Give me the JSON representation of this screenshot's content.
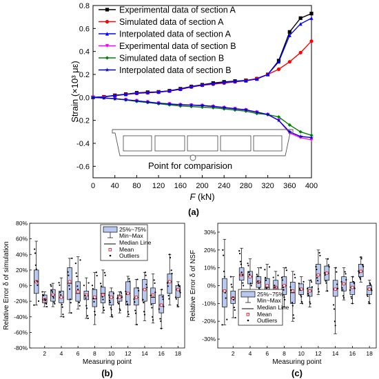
{
  "chart_data": [
    {
      "type": "line",
      "panel_label": "(a)",
      "xlabel_var": "F",
      "xlabel_unit": " (kN)",
      "ylabel": "Strain (×10³ με)",
      "xlim": [
        0,
        400
      ],
      "ylim": [
        -0.7,
        0.8
      ],
      "x_ticks": [
        0,
        40,
        80,
        120,
        160,
        200,
        240,
        280,
        320,
        360,
        400
      ],
      "y_ticks": [
        -0.6,
        -0.4,
        -0.2,
        0.0,
        0.2,
        0.4,
        0.6,
        0.8
      ],
      "legend_position": "top-left",
      "grid": false,
      "x": [
        0,
        20,
        40,
        60,
        80,
        100,
        120,
        140,
        160,
        180,
        200,
        220,
        240,
        260,
        280,
        300,
        320,
        340,
        360,
        380,
        400
      ],
      "series": [
        {
          "name": "Experimental data of section A",
          "color": "#000000",
          "marker": "square",
          "values": [
            0,
            0.005,
            0.018,
            0.028,
            0.04,
            0.045,
            0.048,
            0.058,
            0.075,
            0.095,
            0.11,
            0.125,
            0.135,
            0.142,
            0.148,
            0.162,
            0.2,
            0.32,
            0.57,
            0.69,
            0.73
          ]
        },
        {
          "name": "Simulated data of section A",
          "color": "#ff0000",
          "marker": "circle",
          "values": [
            0,
            0.005,
            0.015,
            0.025,
            0.035,
            0.04,
            0.045,
            0.055,
            0.07,
            0.09,
            0.105,
            0.115,
            0.125,
            0.135,
            0.145,
            0.165,
            0.2,
            0.245,
            0.31,
            0.39,
            0.49
          ]
        },
        {
          "name": "Interpolated data of section A",
          "color": "#0000ff",
          "marker": "triangle",
          "values": [
            0,
            0.005,
            0.017,
            0.027,
            0.038,
            0.043,
            0.047,
            0.057,
            0.072,
            0.093,
            0.108,
            0.12,
            0.13,
            0.14,
            0.145,
            0.16,
            0.2,
            0.31,
            0.54,
            0.64,
            0.69
          ]
        },
        {
          "name": "Experimental data of section B",
          "color": "#ff00ff",
          "marker": "triangle-down",
          "values": [
            0,
            -0.005,
            -0.012,
            -0.02,
            -0.03,
            -0.04,
            -0.05,
            -0.058,
            -0.065,
            -0.068,
            -0.072,
            -0.08,
            -0.09,
            -0.1,
            -0.11,
            -0.13,
            -0.15,
            -0.2,
            -0.31,
            -0.35,
            -0.37
          ]
        },
        {
          "name": "Simulated data of section B",
          "color": "#008000",
          "marker": "diamond",
          "values": [
            0,
            -0.005,
            -0.012,
            -0.022,
            -0.035,
            -0.045,
            -0.055,
            -0.065,
            -0.075,
            -0.08,
            -0.085,
            -0.09,
            -0.1,
            -0.11,
            -0.12,
            -0.14,
            -0.15,
            -0.17,
            -0.24,
            -0.3,
            -0.33
          ]
        },
        {
          "name": "Interpolated data of section B",
          "color": "#0000cc",
          "marker": "star",
          "values": [
            0,
            -0.005,
            -0.012,
            -0.02,
            -0.03,
            -0.04,
            -0.05,
            -0.057,
            -0.063,
            -0.067,
            -0.07,
            -0.078,
            -0.088,
            -0.098,
            -0.108,
            -0.128,
            -0.148,
            -0.2,
            -0.3,
            -0.34,
            -0.35
          ]
        }
      ],
      "annotation": "Point for comparision"
    },
    {
      "type": "box",
      "panel_label": "(b)",
      "ylabel": "Relative Error δ of simulation",
      "xlabel": "Measuring point",
      "ylim": [
        -80,
        80
      ],
      "y_ticks": [
        -80,
        -60,
        -40,
        -20,
        0,
        20,
        40,
        60,
        80
      ],
      "y_tick_suffix": "%",
      "x_ticks": [
        2,
        4,
        6,
        8,
        10,
        12,
        14,
        16,
        18
      ],
      "legend_position": "top-center",
      "legend": {
        "box": "25%~75%",
        "whisker": "Min~Max",
        "median": "Median Line",
        "mean": "Mean",
        "outliers": "Outliers"
      },
      "box_color": "#b8c8f0",
      "boxes": [
        {
          "x": 1,
          "q1": -10,
          "q3": 20,
          "median": 5,
          "mean": 5,
          "min": -25,
          "max": 57
        },
        {
          "x": 2,
          "q1": -22,
          "q3": -12,
          "median": -18,
          "mean": -18,
          "min": -27,
          "max": -8
        },
        {
          "x": 3,
          "q1": -20,
          "q3": -5,
          "median": -12,
          "mean": -12,
          "min": -27,
          "max": 3
        },
        {
          "x": 4,
          "q1": -22,
          "q3": -7,
          "median": -15,
          "mean": -15,
          "min": -40,
          "max": 10
        },
        {
          "x": 5,
          "q1": -18,
          "q3": 23,
          "median": 3,
          "mean": 5,
          "min": -35,
          "max": 35
        },
        {
          "x": 6,
          "q1": -20,
          "q3": 5,
          "median": -10,
          "mean": -8,
          "min": -30,
          "max": 37
        },
        {
          "x": 7,
          "q1": -18,
          "q3": -7,
          "median": -13,
          "mean": -12,
          "min": -42,
          "max": 10
        },
        {
          "x": 8,
          "q1": -27,
          "q3": -5,
          "median": -17,
          "mean": -15,
          "min": -50,
          "max": 17
        },
        {
          "x": 9,
          "q1": -22,
          "q3": -2,
          "median": -10,
          "mean": -12,
          "min": -35,
          "max": 20
        },
        {
          "x": 10,
          "q1": -25,
          "q3": -8,
          "median": -15,
          "mean": -15,
          "min": -40,
          "max": -3
        },
        {
          "x": 11,
          "q1": -20,
          "q3": -12,
          "median": -15,
          "mean": -15,
          "min": -35,
          "max": -8
        },
        {
          "x": 12,
          "q1": -25,
          "q3": 5,
          "median": -10,
          "mean": -10,
          "min": -40,
          "max": 12
        },
        {
          "x": 13,
          "q1": -25,
          "q3": -3,
          "median": -15,
          "mean": -15,
          "min": -50,
          "max": 8
        },
        {
          "x": 14,
          "q1": -20,
          "q3": 8,
          "median": -5,
          "mean": -5,
          "min": -45,
          "max": 17
        },
        {
          "x": 15,
          "q1": -23,
          "q3": -3,
          "median": -15,
          "mean": -12,
          "min": -48,
          "max": 15
        },
        {
          "x": 16,
          "q1": -35,
          "q3": -12,
          "median": -25,
          "mean": -25,
          "min": -55,
          "max": -5
        },
        {
          "x": 17,
          "q1": -10,
          "q3": 15,
          "median": 5,
          "mean": 5,
          "min": -25,
          "max": 40
        },
        {
          "x": 18,
          "q1": -15,
          "q3": 0,
          "median": -5,
          "mean": -5,
          "min": -27,
          "max": 5
        }
      ]
    },
    {
      "type": "box",
      "panel_label": "(c)",
      "ylabel": "Relative Error δ of NSF",
      "xlabel": "Measuring point",
      "ylim": [
        -35,
        35
      ],
      "y_ticks": [
        -30,
        -20,
        -10,
        0,
        10,
        20,
        30
      ],
      "y_tick_suffix": "%",
      "x_ticks": [
        2,
        4,
        6,
        8,
        10,
        12,
        14,
        16,
        18
      ],
      "legend_position": "bottom-left",
      "legend": {
        "box": "25%~75%",
        "whisker": "Min~Max",
        "median": "Median Line",
        "mean": "Mean",
        "outliers": "Outliers"
      },
      "box_color": "#b8c8f0",
      "boxes": [
        {
          "x": 1,
          "q1": -12,
          "q3": 4,
          "median": -3,
          "mean": -3,
          "min": -22,
          "max": 26
        },
        {
          "x": 2,
          "q1": -10,
          "q3": -3,
          "median": -7,
          "mean": -7,
          "min": -18,
          "max": 5
        },
        {
          "x": 3,
          "q1": 3,
          "q3": 10,
          "median": 6,
          "mean": 6,
          "min": -3,
          "max": 21
        },
        {
          "x": 4,
          "q1": 1,
          "q3": 8,
          "median": 5,
          "mean": 5,
          "min": -5,
          "max": 15
        },
        {
          "x": 5,
          "q1": -1,
          "q3": 5,
          "median": 2,
          "mean": 2,
          "min": -5,
          "max": 10
        },
        {
          "x": 6,
          "q1": -6,
          "q3": 4,
          "median": -1,
          "mean": 0,
          "min": -12,
          "max": 12
        },
        {
          "x": 7,
          "q1": -5,
          "q3": 3,
          "median": -1,
          "mean": -1,
          "min": -10,
          "max": 8
        },
        {
          "x": 8,
          "q1": -5,
          "q3": 5,
          "median": 0,
          "mean": 0,
          "min": -12,
          "max": 10
        },
        {
          "x": 9,
          "q1": -10,
          "q3": 2,
          "median": -4,
          "mean": -3,
          "min": -20,
          "max": 8
        },
        {
          "x": 10,
          "q1": -5,
          "q3": 1,
          "median": -2,
          "mean": -2,
          "min": -10,
          "max": 5
        },
        {
          "x": 11,
          "q1": -6,
          "q3": -1,
          "median": -3,
          "mean": -3,
          "min": -12,
          "max": 3
        },
        {
          "x": 12,
          "q1": 1,
          "q3": 12,
          "median": 6,
          "mean": 6,
          "min": -5,
          "max": 20
        },
        {
          "x": 13,
          "q1": 3,
          "q3": 11,
          "median": 7,
          "mean": 7,
          "min": -3,
          "max": 15
        },
        {
          "x": 14,
          "q1": -6,
          "q3": 3,
          "median": -2,
          "mean": -2,
          "min": -27,
          "max": 10
        },
        {
          "x": 15,
          "q1": -3,
          "q3": 5,
          "median": 1,
          "mean": 1,
          "min": -8,
          "max": 10
        },
        {
          "x": 16,
          "q1": -5,
          "q3": 2,
          "median": -1,
          "mean": -1,
          "min": -10,
          "max": 5
        },
        {
          "x": 17,
          "q1": 5,
          "q3": 12,
          "median": 8,
          "mean": 8,
          "min": 2,
          "max": 16
        },
        {
          "x": 18,
          "q1": -5,
          "q3": 0,
          "median": -2,
          "mean": -2,
          "min": -10,
          "max": 3
        }
      ]
    }
  ]
}
